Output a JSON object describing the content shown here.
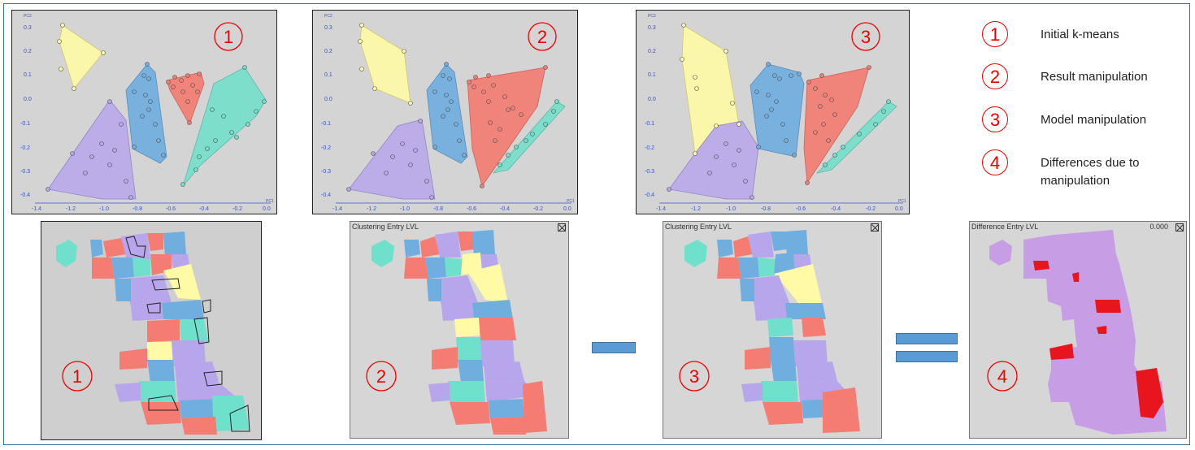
{
  "scatter_panels": [
    {
      "label": "1",
      "x_axis_name": "PC1",
      "y_axis_name": "PC2",
      "x_ticks": [
        "-1.4",
        "-1.2",
        "-1.0",
        "-0.8",
        "-0.6",
        "-0.4",
        "-0.2",
        "0.0"
      ],
      "y_ticks": [
        "0.3",
        "0.2",
        "0.1",
        "0.0",
        "-0.1",
        "-0.2",
        "-0.3",
        "-0.4"
      ]
    },
    {
      "label": "2",
      "x_axis_name": "PC1",
      "y_axis_name": "PC2",
      "x_ticks": [
        "-1.4",
        "-1.2",
        "-1.0",
        "-0.8",
        "-0.6",
        "-0.4",
        "-0.2",
        "0.0"
      ],
      "y_ticks": [
        "0.3",
        "0.2",
        "0.1",
        "0.0",
        "-0.1",
        "-0.2",
        "-0.3",
        "-0.4"
      ]
    },
    {
      "label": "3",
      "x_axis_name": "PC1",
      "y_axis_name": "PC2",
      "x_ticks": [
        "-1.4",
        "-1.2",
        "-1.0",
        "-0.8",
        "-0.6",
        "-0.4",
        "-0.2",
        "0.0"
      ],
      "y_ticks": [
        "0.3",
        "0.2",
        "0.1",
        "0.0",
        "-0.1",
        "-0.2",
        "-0.3",
        "-0.4"
      ]
    }
  ],
  "legend": [
    {
      "num": "1",
      "text": "Initial k-means"
    },
    {
      "num": "2",
      "text": "Result manipulation"
    },
    {
      "num": "3",
      "text": "Model manipulation"
    },
    {
      "num": "4",
      "text": "Differences due to manipulation"
    }
  ],
  "maps": [
    {
      "label": "1",
      "title": "",
      "value": ""
    },
    {
      "label": "2",
      "title": "Clustering Entry LVL",
      "value": ""
    },
    {
      "label": "3",
      "title": "Clustering Entry LVL",
      "value": ""
    },
    {
      "label": "4",
      "title": "Difference Entry LVL",
      "value": "0.000"
    }
  ],
  "operators": [
    "minus",
    "equals"
  ],
  "colors": {
    "yellow": "#fffaa6",
    "blue": "#70aee0",
    "red": "#f47c72",
    "teal": "#6fe0cb",
    "purple": "#b8a6ec",
    "diff_bg": "#c79ee6",
    "diff_red": "#e8141e",
    "label_red": "#e00000",
    "axis_blue": "#3355cc"
  }
}
